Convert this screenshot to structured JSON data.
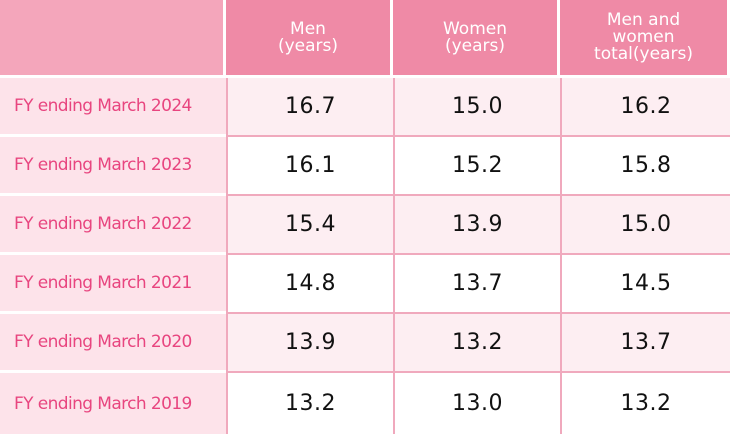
{
  "chart_data": {
    "type": "table",
    "columns": [
      {
        "lines": [
          "Men",
          "(years)"
        ]
      },
      {
        "lines": [
          "Women",
          "(years)"
        ]
      },
      {
        "lines": [
          "Men and",
          "women",
          "total(years)"
        ]
      }
    ],
    "rows": [
      {
        "label": "FY ending March 2024",
        "values": [
          "16.7",
          "15.0",
          "16.2"
        ]
      },
      {
        "label": "FY ending March 2023",
        "values": [
          "16.1",
          "15.2",
          "15.8"
        ]
      },
      {
        "label": "FY ending March 2022",
        "values": [
          "15.4",
          "13.9",
          "15.0"
        ]
      },
      {
        "label": "FY ending March 2021",
        "values": [
          "14.8",
          "13.7",
          "14.5"
        ]
      },
      {
        "label": "FY ending March 2020",
        "values": [
          "13.9",
          "13.2",
          "13.7"
        ]
      },
      {
        "label": "FY ending March 2019",
        "values": [
          "13.2",
          "13.0",
          "13.2"
        ]
      }
    ]
  },
  "colors": {
    "header": "#ef8aa6",
    "row_label_bg": "#fde3ea",
    "row_label_text": "#e8457f",
    "alt_row_bg": "#fdeef2",
    "grid": "#f0a9bd"
  }
}
